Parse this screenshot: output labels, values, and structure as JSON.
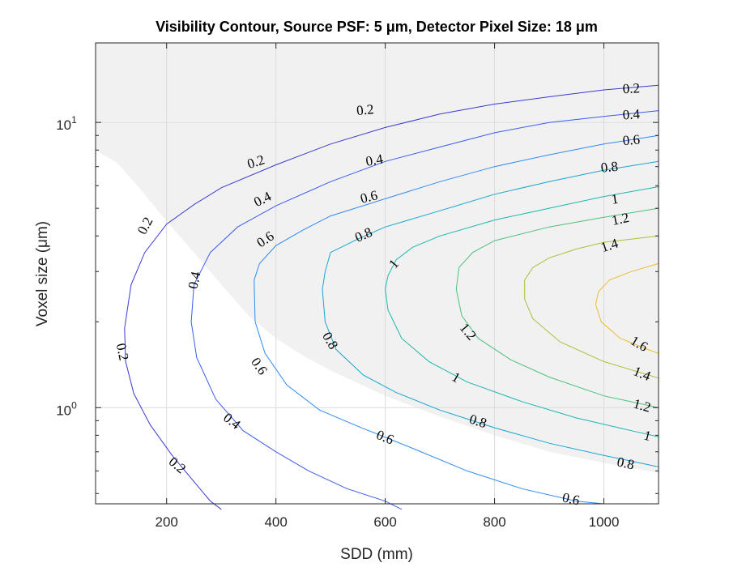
{
  "chart_data": {
    "type": "contour",
    "title": "Visibility Contour, Source PSF: 5 μm, Detector Pixel Size: 18 μm",
    "xlabel": "SDD (mm)",
    "ylabel": "Voxel size (μm)",
    "xlim": [
      70,
      1100
    ],
    "ylim": [
      0.46,
      19
    ],
    "yscale": "log",
    "x_ticks": [
      200,
      400,
      600,
      800,
      1000
    ],
    "x_tick_labels": [
      "200",
      "400",
      "600",
      "800",
      "1000"
    ],
    "y_ticks": [
      1,
      10
    ],
    "y_tick_labels": [
      {
        "base": "10",
        "exp": "0"
      },
      {
        "base": "10",
        "exp": "1"
      }
    ],
    "grid": true,
    "shaded_region": {
      "description_color": "#f1f1f1"
    },
    "levels": [
      {
        "value": 0.2,
        "color": "#3a3ad0"
      },
      {
        "value": 0.4,
        "color": "#3b5bf0"
      },
      {
        "value": 0.6,
        "color": "#2f8bf2"
      },
      {
        "value": 0.8,
        "color": "#17a6cf"
      },
      {
        "value": 1.0,
        "color": "#1bb6ae"
      },
      {
        "value": 1.2,
        "color": "#4dc07b"
      },
      {
        "value": 1.4,
        "color": "#a9bf3b"
      },
      {
        "value": 1.6,
        "color": "#e9bf2f"
      }
    ],
    "contours": [
      {
        "level": 0.2,
        "points": [
          [
            1100,
            13.5
          ],
          [
            1000,
            13.0
          ],
          [
            900,
            12.3
          ],
          [
            800,
            11.6
          ],
          [
            700,
            10.7
          ],
          [
            600,
            9.6
          ],
          [
            500,
            8.4
          ],
          [
            400,
            7.1
          ],
          [
            300,
            5.9
          ],
          [
            250,
            5.15
          ],
          [
            200,
            4.4
          ],
          [
            160,
            3.5
          ],
          [
            135,
            2.7
          ],
          [
            123,
            1.9
          ],
          [
            125,
            1.45
          ],
          [
            140,
            1.12
          ],
          [
            170,
            0.87
          ],
          [
            210,
            0.68
          ],
          [
            250,
            0.55
          ],
          [
            280,
            0.47
          ],
          [
            300,
            0.44
          ]
        ]
      },
      {
        "level": 0.4,
        "points": [
          [
            1100,
            11.0
          ],
          [
            1000,
            10.5
          ],
          [
            900,
            10.0
          ],
          [
            800,
            9.2
          ],
          [
            700,
            8.2
          ],
          [
            600,
            7.3
          ],
          [
            500,
            6.2
          ],
          [
            400,
            5.1
          ],
          [
            330,
            4.3
          ],
          [
            280,
            3.5
          ],
          [
            250,
            2.7
          ],
          [
            245,
            2.0
          ],
          [
            255,
            1.5
          ],
          [
            290,
            1.07
          ],
          [
            340,
            0.83
          ],
          [
            400,
            0.7
          ],
          [
            460,
            0.6
          ],
          [
            530,
            0.52
          ],
          [
            600,
            0.47
          ],
          [
            630,
            0.44
          ]
        ]
      },
      {
        "level": 0.6,
        "points": [
          [
            1100,
            9.0
          ],
          [
            1000,
            8.4
          ],
          [
            900,
            7.7
          ],
          [
            800,
            7.0
          ],
          [
            700,
            6.2
          ],
          [
            600,
            5.4
          ],
          [
            500,
            4.7
          ],
          [
            450,
            4.2
          ],
          [
            400,
            3.7
          ],
          [
            370,
            3.2
          ],
          [
            360,
            2.8
          ],
          [
            362,
            2.0
          ],
          [
            380,
            1.55
          ],
          [
            420,
            1.2
          ],
          [
            480,
            0.98
          ],
          [
            550,
            0.86
          ],
          [
            650,
            0.72
          ],
          [
            750,
            0.6
          ],
          [
            850,
            0.52
          ],
          [
            950,
            0.47
          ],
          [
            1000,
            0.46
          ]
        ]
      },
      {
        "level": 0.8,
        "points": [
          [
            1100,
            7.3
          ],
          [
            1000,
            6.8
          ],
          [
            900,
            6.2
          ],
          [
            800,
            5.6
          ],
          [
            700,
            4.9
          ],
          [
            600,
            4.3
          ],
          [
            550,
            3.9
          ],
          [
            500,
            3.5
          ],
          [
            490,
            3.0
          ],
          [
            485,
            2.6
          ],
          [
            490,
            2.0
          ],
          [
            510,
            1.6
          ],
          [
            560,
            1.3
          ],
          [
            620,
            1.13
          ],
          [
            700,
            0.98
          ],
          [
            800,
            0.85
          ],
          [
            900,
            0.75
          ],
          [
            1000,
            0.68
          ],
          [
            1100,
            0.62
          ]
        ]
      },
      {
        "level": 1.0,
        "points": [
          [
            1100,
            5.95
          ],
          [
            1000,
            5.5
          ],
          [
            900,
            5.0
          ],
          [
            800,
            4.55
          ],
          [
            700,
            4.0
          ],
          [
            650,
            3.65
          ],
          [
            620,
            3.3
          ],
          [
            605,
            2.9
          ],
          [
            600,
            2.6
          ],
          [
            605,
            2.2
          ],
          [
            630,
            1.75
          ],
          [
            680,
            1.45
          ],
          [
            750,
            1.23
          ],
          [
            850,
            1.05
          ],
          [
            950,
            0.92
          ],
          [
            1050,
            0.83
          ],
          [
            1100,
            0.79
          ]
        ]
      },
      {
        "level": 1.2,
        "points": [
          [
            1100,
            5.0
          ],
          [
            1000,
            4.65
          ],
          [
            900,
            4.3
          ],
          [
            800,
            3.85
          ],
          [
            760,
            3.5
          ],
          [
            735,
            3.1
          ],
          [
            730,
            2.6
          ],
          [
            740,
            2.1
          ],
          [
            770,
            1.75
          ],
          [
            830,
            1.47
          ],
          [
            900,
            1.28
          ],
          [
            1000,
            1.1
          ],
          [
            1100,
            1.0
          ]
        ]
      },
      {
        "level": 1.4,
        "points": [
          [
            1100,
            4.0
          ],
          [
            1000,
            3.8
          ],
          [
            950,
            3.6
          ],
          [
            900,
            3.35
          ],
          [
            870,
            3.1
          ],
          [
            855,
            2.8
          ],
          [
            855,
            2.4
          ],
          [
            870,
            2.05
          ],
          [
            920,
            1.7
          ],
          [
            1000,
            1.45
          ],
          [
            1100,
            1.27
          ]
        ]
      },
      {
        "level": 1.6,
        "points": [
          [
            1100,
            3.2
          ],
          [
            1050,
            3.0
          ],
          [
            1010,
            2.8
          ],
          [
            990,
            2.55
          ],
          [
            985,
            2.3
          ],
          [
            995,
            2.0
          ],
          [
            1030,
            1.75
          ],
          [
            1080,
            1.6
          ],
          [
            1100,
            1.55
          ]
        ]
      }
    ],
    "contour_labels": [
      {
        "level": 0.2,
        "text": "0.2",
        "x": 563,
        "y": 11.1,
        "angle": -6
      },
      {
        "level": 0.2,
        "text": "0.2",
        "x": 363,
        "y": 7.3,
        "angle": -18
      },
      {
        "level": 0.2,
        "text": "0.2",
        "x": 160,
        "y": 4.35,
        "angle": -62
      },
      {
        "level": 0.2,
        "text": "0.2",
        "x": 1050,
        "y": 13.2,
        "angle": -3
      },
      {
        "level": 0.2,
        "text": "0.2",
        "x": 120,
        "y": 1.57,
        "angle": 78
      },
      {
        "level": 0.2,
        "text": "0.2",
        "x": 220,
        "y": 0.63,
        "angle": 40
      },
      {
        "level": 0.4,
        "text": "0.4",
        "x": 580,
        "y": 7.4,
        "angle": -10
      },
      {
        "level": 0.4,
        "text": "0.4",
        "x": 375,
        "y": 5.4,
        "angle": -26
      },
      {
        "level": 0.4,
        "text": "0.4",
        "x": 250,
        "y": 2.8,
        "angle": -78
      },
      {
        "level": 0.4,
        "text": "0.4",
        "x": 1050,
        "y": 10.7,
        "angle": -3
      },
      {
        "level": 0.4,
        "text": "0.4",
        "x": 320,
        "y": 0.9,
        "angle": 38
      },
      {
        "level": 0.6,
        "text": "0.6",
        "x": 570,
        "y": 5.5,
        "angle": -14
      },
      {
        "level": 0.6,
        "text": "0.6",
        "x": 380,
        "y": 3.9,
        "angle": -34
      },
      {
        "level": 0.6,
        "text": "0.6",
        "x": 370,
        "y": 1.4,
        "angle": 55
      },
      {
        "level": 0.6,
        "text": "0.6",
        "x": 1050,
        "y": 8.7,
        "angle": -5
      },
      {
        "level": 0.6,
        "text": "0.6",
        "x": 600,
        "y": 0.79,
        "angle": 22
      },
      {
        "level": 0.6,
        "text": "0.6",
        "x": 940,
        "y": 0.48,
        "angle": 12
      },
      {
        "level": 0.8,
        "text": "0.8",
        "x": 560,
        "y": 4.05,
        "angle": -24
      },
      {
        "level": 0.8,
        "text": "0.8",
        "x": 500,
        "y": 1.72,
        "angle": 60
      },
      {
        "level": 0.8,
        "text": "0.8",
        "x": 1010,
        "y": 7.0,
        "angle": -6
      },
      {
        "level": 0.8,
        "text": "0.8",
        "x": 770,
        "y": 0.9,
        "angle": 18
      },
      {
        "level": 0.8,
        "text": "0.8",
        "x": 1040,
        "y": 0.64,
        "angle": 12
      },
      {
        "level": 1.0,
        "text": "1",
        "x": 615,
        "y": 3.2,
        "angle": -50
      },
      {
        "level": 1.0,
        "text": "1",
        "x": 730,
        "y": 1.28,
        "angle": 30
      },
      {
        "level": 1.0,
        "text": "1",
        "x": 1020,
        "y": 5.4,
        "angle": -8
      },
      {
        "level": 1.0,
        "text": "1",
        "x": 1080,
        "y": 0.8,
        "angle": 14
      },
      {
        "level": 1.2,
        "text": "1.2",
        "x": 752,
        "y": 1.85,
        "angle": 50
      },
      {
        "level": 1.2,
        "text": "1.2",
        "x": 1030,
        "y": 4.6,
        "angle": -12
      },
      {
        "level": 1.2,
        "text": "1.2",
        "x": 1070,
        "y": 1.02,
        "angle": 16
      },
      {
        "level": 1.4,
        "text": "1.4",
        "x": 1010,
        "y": 3.72,
        "angle": -18
      },
      {
        "level": 1.4,
        "text": "1.4",
        "x": 1070,
        "y": 1.32,
        "angle": 22
      },
      {
        "level": 1.6,
        "text": "1.6",
        "x": 1065,
        "y": 1.68,
        "angle": 30
      }
    ],
    "shaded_boundary": [
      [
        70,
        8.0
      ],
      [
        110,
        7.2
      ],
      [
        150,
        5.9
      ],
      [
        200,
        4.5
      ],
      [
        250,
        3.5
      ],
      [
        300,
        2.7
      ],
      [
        350,
        2.1
      ],
      [
        400,
        1.75
      ],
      [
        450,
        1.52
      ],
      [
        500,
        1.35
      ],
      [
        600,
        1.1
      ],
      [
        700,
        0.93
      ],
      [
        800,
        0.8
      ],
      [
        900,
        0.7
      ],
      [
        1000,
        0.64
      ],
      [
        1100,
        0.59
      ]
    ]
  }
}
